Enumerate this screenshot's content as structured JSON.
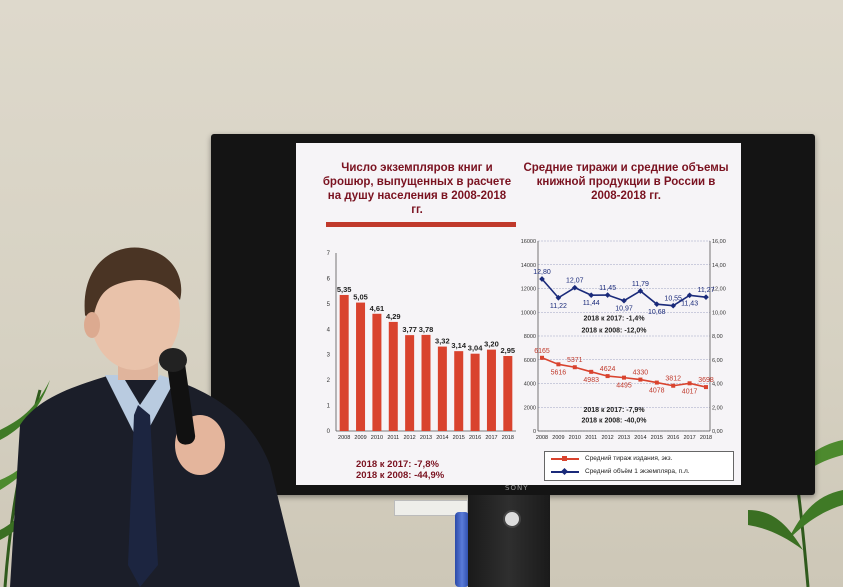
{
  "slide": {
    "title_left": "Число экземпляров книг и брошюр, выпущенных в расчете на душу населения в 2008-2018 гг.",
    "title_right": "Средние тиражи и средние объемы книжной продукции в России в 2008-2018 гг.",
    "left_note_1": "2018 к 2017: -7,8%",
    "left_note_2": "2018 к 2008: -44,9%",
    "right_note_top_1": "2018 к 2017: -1,4%",
    "right_note_top_2": "2018 к 2008: -12,0%",
    "right_note_bottom_1": "2018 к 2017: -7,9%",
    "right_note_bottom_2": "2018 к 2008: -40,0%",
    "legend_1": "Средний тираж издания, экз.",
    "legend_2": "Средний объём 1 экземпляра, п.л.",
    "tv_brand": "SONY"
  },
  "chart_data": [
    {
      "type": "bar",
      "categories": [
        "2008",
        "2009",
        "2010",
        "2011",
        "2012",
        "2013",
        "2014",
        "2015",
        "2016",
        "2017",
        "2018"
      ],
      "values": [
        5.35,
        5.05,
        4.61,
        4.29,
        3.77,
        3.78,
        3.32,
        3.14,
        3.04,
        3.2,
        2.95
      ],
      "value_labels": [
        "5,35",
        "5,05",
        "4,61",
        "4,29",
        "3,77",
        "3,78",
        "3,32",
        "3,14",
        "3,04",
        "3,20",
        "2,95"
      ],
      "yticks": [
        "0",
        "1",
        "2",
        "3",
        "4",
        "5",
        "6",
        "7"
      ],
      "ylim": [
        0,
        7
      ],
      "color": "#d9432e"
    },
    {
      "type": "line",
      "x": [
        "2008",
        "2009",
        "2010",
        "2011",
        "2012",
        "2013",
        "2014",
        "2015",
        "2016",
        "2017",
        "2018"
      ],
      "series": [
        {
          "name": "Средний тираж издания, экз.",
          "axis": "left",
          "values": [
            6165,
            5616,
            5371,
            4983,
            4624,
            4495,
            4330,
            4078,
            3812,
            4017,
            3698
          ],
          "labels": [
            "6165",
            "5616",
            "5371",
            "4983",
            "4624",
            "4495",
            "4330",
            "4078",
            "3812",
            "4017",
            "3698"
          ],
          "color": "#d9432e"
        },
        {
          "name": "Средний объём 1 экземпляра, п.л.",
          "axis": "right",
          "values": [
            12.8,
            11.22,
            12.07,
            11.44,
            11.45,
            10.97,
            11.79,
            10.68,
            10.55,
            11.43,
            11.27
          ],
          "labels": [
            "12,80",
            "11,22",
            "12,07",
            "11,44",
            "11,45",
            "10,97",
            "11,79",
            "10,68",
            "10,55",
            "11,43",
            "11,27"
          ],
          "color": "#1a2a7a"
        }
      ],
      "ylim_left": [
        0,
        16000
      ],
      "ylim_right": [
        0,
        16
      ],
      "yticks_left": [
        "0",
        "2000",
        "4000",
        "6000",
        "8000",
        "10000",
        "12000",
        "14000",
        "16000"
      ],
      "yticks_right": [
        "0,00",
        "2,00",
        "4,00",
        "6,00",
        "8,00",
        "10,00",
        "12,00",
        "14,00",
        "16,00"
      ],
      "grid": true
    }
  ]
}
